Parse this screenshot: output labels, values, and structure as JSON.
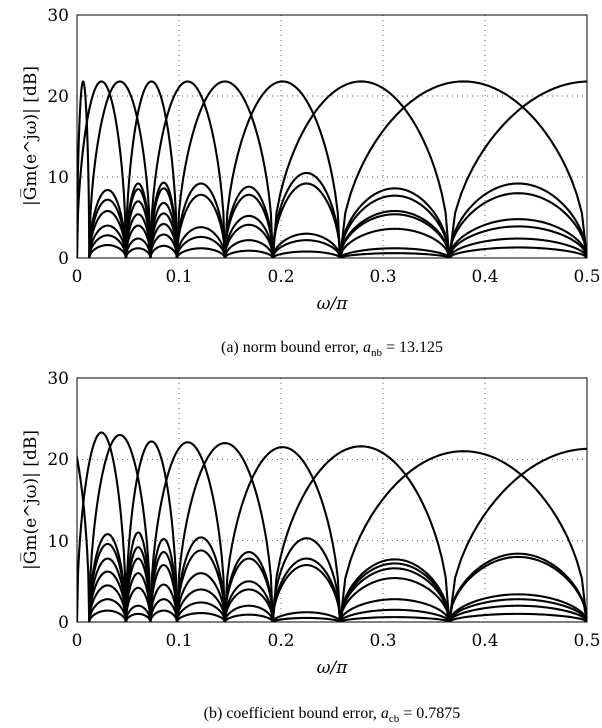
{
  "chart_data": [
    {
      "type": "line",
      "caption_prefix": "(a) norm bound error, ",
      "caption_symbol": "a",
      "caption_subscript": "nb",
      "caption_value": " = 13.125",
      "xlabel": "ω/π",
      "ylabel": "|G̅m(e^jω)| [dB]",
      "xlim": [
        0,
        0.5
      ],
      "ylim": [
        0,
        30
      ],
      "xticks": [
        "0",
        "0.1",
        "0.2",
        "0.3",
        "0.4",
        "0.5"
      ],
      "yticks": [
        "0",
        "10",
        "20",
        "30"
      ],
      "grid": true,
      "main_lobes": [
        {
          "x0": 0.0,
          "x1": 0.012,
          "peak": 21.8
        },
        {
          "x0": 0.0,
          "x1": 0.048,
          "peak": 21.8
        },
        {
          "x0": 0.012,
          "x1": 0.072,
          "peak": 21.8
        },
        {
          "x0": 0.048,
          "x1": 0.098,
          "peak": 21.8
        },
        {
          "x0": 0.072,
          "x1": 0.145,
          "peak": 21.8
        },
        {
          "x0": 0.098,
          "x1": 0.192,
          "peak": 21.8
        },
        {
          "x0": 0.145,
          "x1": 0.258,
          "peak": 21.8
        },
        {
          "x0": 0.192,
          "x1": 0.365,
          "peak": 21.8
        },
        {
          "x0": 0.258,
          "x1": 0.5,
          "peak": 21.8
        },
        {
          "x0": 0.365,
          "x1": 0.64,
          "peak": 21.8
        }
      ],
      "side_lobes": [
        {
          "x0": 0.012,
          "x1": 0.048,
          "levels": [
            8.4,
            7.2,
            5.8,
            4.0,
            2.8,
            1.6
          ]
        },
        {
          "x0": 0.048,
          "x1": 0.072,
          "levels": [
            9.2,
            8.5,
            7.0,
            5.4,
            4.0,
            2.4,
            1.2
          ]
        },
        {
          "x0": 0.072,
          "x1": 0.098,
          "levels": [
            9.3,
            8.6,
            6.8,
            5.5,
            4.2,
            2.9,
            1.5
          ]
        },
        {
          "x0": 0.098,
          "x1": 0.145,
          "levels": [
            9.2,
            7.8,
            3.8,
            2.6,
            1.2
          ]
        },
        {
          "x0": 0.145,
          "x1": 0.192,
          "levels": [
            8.8,
            7.8,
            5.2,
            4.1,
            2.2,
            0.9
          ]
        },
        {
          "x0": 0.192,
          "x1": 0.258,
          "levels": [
            10.5,
            9.2,
            3.0,
            2.2,
            0.8
          ]
        },
        {
          "x0": 0.258,
          "x1": 0.365,
          "levels": [
            8.6,
            7.7,
            5.8,
            5.4,
            3.6,
            1.2,
            0.6
          ]
        },
        {
          "x0": 0.365,
          "x1": 0.5,
          "levels": [
            9.2,
            8.0,
            4.8,
            3.9,
            2.4,
            1.3
          ]
        }
      ]
    },
    {
      "type": "line",
      "caption_prefix": "(b) coefficient bound error, ",
      "caption_symbol": "a",
      "caption_subscript": "cb",
      "caption_value": " = 0.7875",
      "xlabel": "ω/π",
      "ylabel": "|G̅m(e^jω)| [dB]",
      "xlim": [
        0,
        0.5
      ],
      "ylim": [
        0,
        30
      ],
      "xticks": [
        "0",
        "0.1",
        "0.2",
        "0.3",
        "0.4",
        "0.5"
      ],
      "yticks": [
        "0",
        "10",
        "20",
        "30"
      ],
      "grid": true,
      "main_lobes": [
        {
          "x0": -0.035,
          "x1": 0.012,
          "peak": 23.8
        },
        {
          "x0": 0.0,
          "x1": 0.048,
          "peak": 23.3
        },
        {
          "x0": 0.012,
          "x1": 0.072,
          "peak": 23.0
        },
        {
          "x0": 0.048,
          "x1": 0.098,
          "peak": 22.2
        },
        {
          "x0": 0.072,
          "x1": 0.145,
          "peak": 22.1
        },
        {
          "x0": 0.098,
          "x1": 0.192,
          "peak": 22.0
        },
        {
          "x0": 0.145,
          "x1": 0.258,
          "peak": 21.5
        },
        {
          "x0": 0.192,
          "x1": 0.365,
          "peak": 21.6
        },
        {
          "x0": 0.258,
          "x1": 0.5,
          "peak": 21.0
        },
        {
          "x0": 0.365,
          "x1": 0.64,
          "peak": 21.3
        }
      ],
      "side_lobes": [
        {
          "x0": 0.012,
          "x1": 0.048,
          "levels": [
            10.8,
            9.6,
            7.8,
            6.2,
            4.5,
            2.8,
            1.4
          ]
        },
        {
          "x0": 0.048,
          "x1": 0.072,
          "levels": [
            11.0,
            9.2,
            7.8,
            6.0,
            4.2,
            2.0,
            1.0
          ]
        },
        {
          "x0": 0.072,
          "x1": 0.098,
          "levels": [
            10.2,
            8.6,
            7.0,
            4.6,
            2.8,
            1.4
          ]
        },
        {
          "x0": 0.098,
          "x1": 0.145,
          "levels": [
            10.4,
            8.8,
            6.0,
            4.0,
            2.4,
            1.1
          ]
        },
        {
          "x0": 0.145,
          "x1": 0.192,
          "levels": [
            8.6,
            7.8,
            5.0,
            4.0,
            2.0,
            0.9
          ]
        },
        {
          "x0": 0.192,
          "x1": 0.258,
          "levels": [
            10.3,
            7.8,
            7.0,
            1.2,
            0.5
          ]
        },
        {
          "x0": 0.258,
          "x1": 0.365,
          "levels": [
            7.7,
            7.2,
            6.6,
            5.4,
            2.8,
            1.5,
            0.6
          ]
        },
        {
          "x0": 0.365,
          "x1": 0.5,
          "levels": [
            8.4,
            8.0,
            3.4,
            2.8,
            2.0,
            1.0
          ]
        }
      ]
    }
  ]
}
